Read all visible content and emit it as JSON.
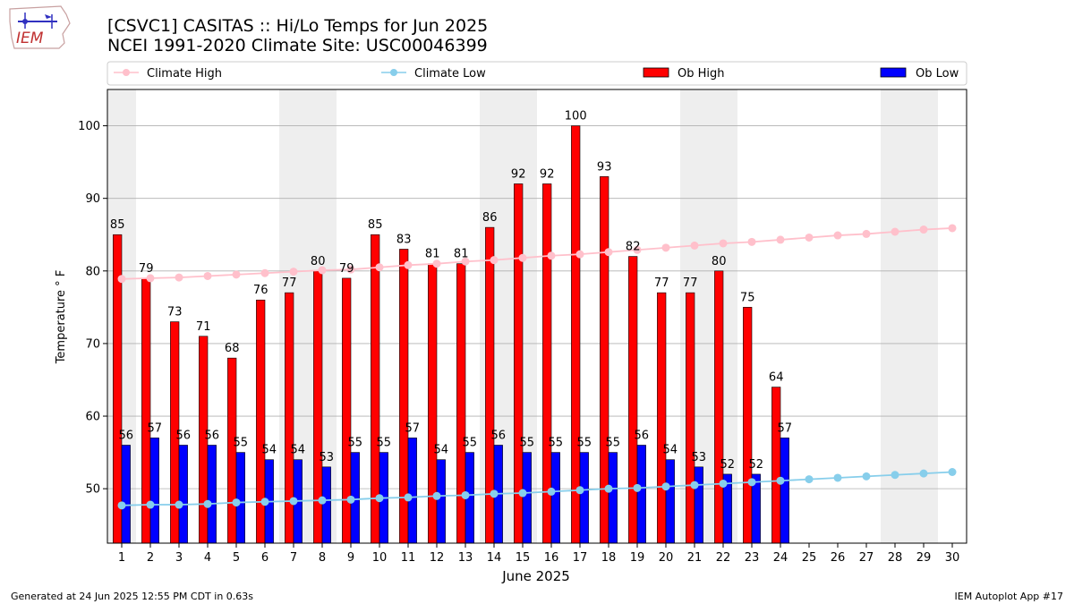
{
  "header": {
    "title_line1": "[CSVC1] CASITAS :: Hi/Lo Temps for Jun 2025",
    "title_line2": "NCEI 1991-2020 Climate Site: USC00046399",
    "logo_text": "IEM"
  },
  "footer": {
    "left": "Generated at 24 Jun 2025 12:55 PM CDT in 0.63s",
    "right": "IEM Autoplot App #17"
  },
  "colors": {
    "ob_high": "#ff0000",
    "ob_low": "#0000ff",
    "climate_high": "#ffc0cb",
    "climate_low": "#87ceeb",
    "weekend_shade": "#eeeeee",
    "grid": "#b0b0b0"
  },
  "chart_data": {
    "type": "bar",
    "xlabel": "June 2025",
    "ylabel": "Temperature $^\\circ$F",
    "ylabel_display": "Temperature ° F",
    "xlim": [
      0.5,
      30.5
    ],
    "ylim": [
      42.5,
      105
    ],
    "yticks": [
      50,
      60,
      70,
      80,
      90,
      100
    ],
    "grid": "horizontal",
    "legend_position": "top",
    "legend": [
      "Climate High",
      "Climate Low",
      "Ob High",
      "Ob Low"
    ],
    "shaded_days": [
      1,
      7,
      8,
      14,
      15,
      21,
      22,
      28,
      29
    ],
    "days": [
      1,
      2,
      3,
      4,
      5,
      6,
      7,
      8,
      9,
      10,
      11,
      12,
      13,
      14,
      15,
      16,
      17,
      18,
      19,
      20,
      21,
      22,
      23,
      24,
      25,
      26,
      27,
      28,
      29,
      30
    ],
    "series": [
      {
        "name": "Ob High",
        "kind": "bar",
        "values": [
          85,
          79,
          73,
          71,
          68,
          76,
          77,
          80,
          79,
          85,
          83,
          81,
          81,
          86,
          92,
          92,
          100,
          93,
          82,
          77,
          77,
          80,
          75,
          64
        ]
      },
      {
        "name": "Ob Low",
        "kind": "bar",
        "values": [
          56,
          57,
          56,
          56,
          55,
          54,
          54,
          53,
          55,
          55,
          57,
          54,
          55,
          56,
          55,
          55,
          55,
          55,
          56,
          54,
          53,
          52,
          52,
          57
        ]
      },
      {
        "name": "Climate High",
        "kind": "line",
        "values": [
          78.9,
          79.0,
          79.1,
          79.3,
          79.5,
          79.7,
          79.9,
          80.1,
          80.2,
          80.5,
          80.8,
          81.0,
          81.3,
          81.5,
          81.8,
          82.1,
          82.3,
          82.6,
          82.9,
          83.2,
          83.5,
          83.8,
          84.0,
          84.3,
          84.6,
          84.9,
          85.1,
          85.4,
          85.7,
          85.9
        ]
      },
      {
        "name": "Climate Low",
        "kind": "line",
        "values": [
          47.7,
          47.8,
          47.8,
          47.9,
          48.1,
          48.2,
          48.3,
          48.4,
          48.5,
          48.7,
          48.8,
          49.0,
          49.1,
          49.3,
          49.4,
          49.6,
          49.8,
          50.0,
          50.1,
          50.3,
          50.5,
          50.7,
          50.9,
          51.1,
          51.3,
          51.5,
          51.7,
          51.9,
          52.1,
          52.3
        ]
      }
    ]
  }
}
